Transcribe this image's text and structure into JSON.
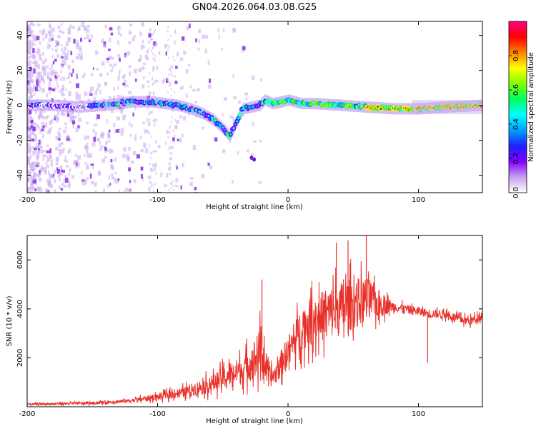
{
  "page_title": "GN04.2026.064.03.08.G25",
  "chart_data": [
    {
      "type": "heatmap",
      "title": "GN04.2026.064.03.08.G25",
      "xlabel": "Height of straight line (km)",
      "ylabel": "Frequency (Hz)",
      "xlim": [
        -200,
        149
      ],
      "ylim": [
        -50,
        48
      ],
      "xticks": [
        -200,
        -100,
        0,
        100
      ],
      "yticks": [
        -40,
        -20,
        0,
        20,
        40
      ],
      "colorbar": {
        "label": "Normalized spectral amplitude",
        "range": [
          0,
          1
        ],
        "ticks": [
          "0.0",
          "0.2",
          "0.4",
          "0.6",
          "0.8"
        ],
        "colors": [
          "#ffffff",
          "#c8a0f0",
          "#8000ff",
          "#2020ff",
          "#00a0ff",
          "#00ffff",
          "#00ff60",
          "#80ff00",
          "#ffff00",
          "#ff8000",
          "#ff0000",
          "#ff0080"
        ]
      },
      "ridge": {
        "description": "dominant frequency vs height",
        "points": [
          [
            -200,
            0
          ],
          [
            -180,
            0
          ],
          [
            -160,
            -1
          ],
          [
            -140,
            0
          ],
          [
            -120,
            2
          ],
          [
            -105,
            2
          ],
          [
            -95,
            1
          ],
          [
            -85,
            0
          ],
          [
            -75,
            -2
          ],
          [
            -65,
            -5
          ],
          [
            -58,
            -8
          ],
          [
            -52,
            -12
          ],
          [
            -48,
            -15
          ],
          [
            -45,
            -18
          ],
          [
            -35,
            -2
          ],
          [
            -28,
            -1
          ],
          [
            -22,
            0
          ],
          [
            -18,
            3
          ],
          [
            -12,
            1
          ],
          [
            -5,
            2
          ],
          [
            0,
            3
          ],
          [
            10,
            1
          ],
          [
            20,
            1
          ],
          [
            40,
            0
          ],
          [
            60,
            -1
          ],
          [
            80,
            -2
          ],
          [
            100,
            -2
          ],
          [
            120,
            -1
          ],
          [
            149,
            0
          ]
        ]
      }
    },
    {
      "type": "line",
      "xlabel": "Height of straight line (km)",
      "ylabel": "SNR (10 * v/v)",
      "xlim": [
        -200,
        149
      ],
      "ylim": [
        0,
        7000
      ],
      "xticks": [
        -200,
        -100,
        0,
        100
      ],
      "yticks": [
        2000,
        4000,
        6000
      ],
      "color": "#e8312a",
      "envelope": {
        "description": "approximate SNR level and spread vs height",
        "points": [
          [
            -200,
            100,
            60
          ],
          [
            -150,
            150,
            80
          ],
          [
            -120,
            250,
            120
          ],
          [
            -100,
            400,
            200
          ],
          [
            -80,
            600,
            300
          ],
          [
            -60,
            900,
            500
          ],
          [
            -45,
            1300,
            700
          ],
          [
            -35,
            1500,
            800
          ],
          [
            -25,
            2000,
            1200
          ],
          [
            -20,
            2300,
            1500
          ],
          [
            -15,
            1200,
            600
          ],
          [
            -10,
            1300,
            600
          ],
          [
            -5,
            1800,
            800
          ],
          [
            0,
            2300,
            900
          ],
          [
            5,
            2700,
            1000
          ],
          [
            10,
            3200,
            1300
          ],
          [
            20,
            3600,
            1400
          ],
          [
            30,
            3800,
            1500
          ],
          [
            40,
            4000,
            1600
          ],
          [
            50,
            4200,
            1500
          ],
          [
            60,
            4400,
            1300
          ],
          [
            70,
            4200,
            800
          ],
          [
            80,
            4100,
            300
          ],
          [
            90,
            4000,
            250
          ],
          [
            100,
            3900,
            250
          ],
          [
            110,
            3800,
            250
          ],
          [
            120,
            3800,
            250
          ],
          [
            130,
            3600,
            250
          ],
          [
            140,
            3500,
            250
          ],
          [
            149,
            3750,
            250
          ]
        ]
      },
      "peaks": [
        {
          "x": -20,
          "y": 5200
        },
        {
          "x": 37,
          "y": 6700
        },
        {
          "x": 46,
          "y": 6800
        },
        {
          "x": 60,
          "y": 7000
        },
        {
          "x": 107,
          "y": 1800
        }
      ]
    }
  ]
}
